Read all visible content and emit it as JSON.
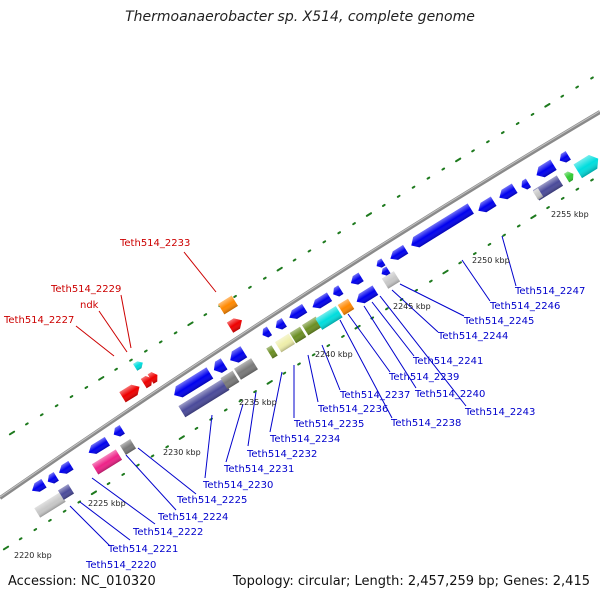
{
  "title": "Thermoanaerobacter sp. X514, complete genome",
  "accession": "Accession: NC_010320",
  "summary": "Topology: circular; Length: 2,457,259 bp; Genes: 2,415",
  "colors": {
    "backbone": "#8a8a8a",
    "tick_dot": "#1e7a1e",
    "label_blue": "#0000cc",
    "label_red": "#cc0000",
    "gene_blue": "#0000ee",
    "gene_cyan": "#00dddd",
    "gene_navy": "#4a4a9a",
    "gene_grey": "#7a7a7a",
    "gene_lightgrey": "#c8c8c8",
    "gene_olive": "#6b8e23",
    "gene_pale": "#eeeeaa",
    "gene_orange": "#ff8800",
    "gene_red": "#ee0000",
    "gene_magenta": "#ee2288",
    "gene_green": "#33cc33"
  },
  "kbp_labels": [
    "2220 kbp",
    "2225 kbp",
    "2230 kbp",
    "2235 kbp",
    "2240 kbp",
    "2245 kbp",
    "2250 kbp",
    "2255 kbp"
  ],
  "gene_labels_blue": [
    "Teth514_2220",
    "Teth514_2221",
    "Teth514_2222",
    "Teth514_2224",
    "Teth514_2225",
    "Teth514_2230",
    "Teth514_2231",
    "Teth514_2232",
    "Teth514_2234",
    "Teth514_2235",
    "Teth514_2236",
    "Teth514_2237",
    "Teth514_2238",
    "Teth514_2239",
    "Teth514_2240",
    "Teth514_2241",
    "Teth514_2243",
    "Teth514_2244",
    "Teth514_2245",
    "Teth514_2246",
    "Teth514_2247"
  ],
  "gene_labels_red": [
    "Teth514_2233",
    "Teth514_2229",
    "ndk",
    "Teth514_2227"
  ]
}
